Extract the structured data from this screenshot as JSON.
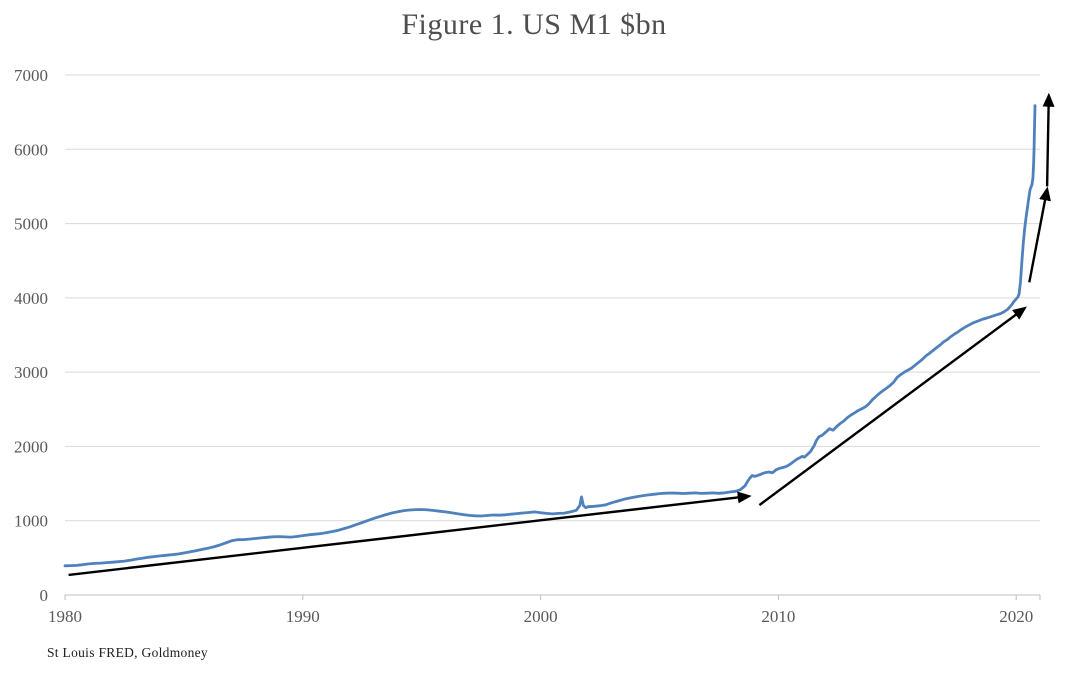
{
  "figure": {
    "title": "Figure 1. US M1 $bn",
    "source": "St Louis FRED, Goldmoney"
  },
  "chart_data": {
    "type": "line",
    "title": "Figure 1. US M1 $bn",
    "xlabel": "",
    "ylabel": "",
    "xlim": [
      1980,
      2021
    ],
    "ylim": [
      0,
      7000
    ],
    "x_ticks": [
      1980,
      1990,
      2000,
      2010,
      2020
    ],
    "y_ticks": [
      0,
      1000,
      2000,
      3000,
      4000,
      5000,
      6000,
      7000
    ],
    "grid": "horizontal",
    "legend": "none",
    "colors": {
      "grid": "#d9d9d9",
      "axis": "#bfbfbf",
      "tick_label": "#595959",
      "title": "#4e4e4e",
      "arrow": "#000000",
      "series": "#4f81bd"
    },
    "series": [
      {
        "name": "US M1 $bn",
        "color": "#4f81bd",
        "points": [
          [
            1980.0,
            393
          ],
          [
            1980.25,
            396
          ],
          [
            1980.5,
            398
          ],
          [
            1980.75,
            408
          ],
          [
            1981.0,
            419
          ],
          [
            1981.25,
            426
          ],
          [
            1981.5,
            430
          ],
          [
            1981.75,
            436
          ],
          [
            1982.0,
            442
          ],
          [
            1982.25,
            448
          ],
          [
            1982.5,
            457
          ],
          [
            1982.75,
            469
          ],
          [
            1983.0,
            483
          ],
          [
            1983.25,
            496
          ],
          [
            1983.5,
            508
          ],
          [
            1983.75,
            517
          ],
          [
            1984.0,
            527
          ],
          [
            1984.25,
            535
          ],
          [
            1984.5,
            542
          ],
          [
            1984.75,
            552
          ],
          [
            1985.0,
            565
          ],
          [
            1985.25,
            580
          ],
          [
            1985.5,
            597
          ],
          [
            1985.75,
            612
          ],
          [
            1986.0,
            628
          ],
          [
            1986.25,
            647
          ],
          [
            1986.5,
            672
          ],
          [
            1986.75,
            700
          ],
          [
            1987.0,
            729
          ],
          [
            1987.25,
            744
          ],
          [
            1987.5,
            746
          ],
          [
            1987.75,
            752
          ],
          [
            1988.0,
            760
          ],
          [
            1988.25,
            769
          ],
          [
            1988.5,
            777
          ],
          [
            1988.75,
            783
          ],
          [
            1989.0,
            786
          ],
          [
            1989.25,
            782
          ],
          [
            1989.5,
            779
          ],
          [
            1989.75,
            787
          ],
          [
            1990.0,
            799
          ],
          [
            1990.25,
            810
          ],
          [
            1990.5,
            818
          ],
          [
            1990.75,
            826
          ],
          [
            1991.0,
            840
          ],
          [
            1991.25,
            855
          ],
          [
            1991.5,
            872
          ],
          [
            1991.75,
            895
          ],
          [
            1992.0,
            920
          ],
          [
            1992.25,
            948
          ],
          [
            1992.5,
            976
          ],
          [
            1993.0,
            1032
          ],
          [
            1993.25,
            1058
          ],
          [
            1993.5,
            1082
          ],
          [
            1993.75,
            1104
          ],
          [
            1994.0,
            1122
          ],
          [
            1994.25,
            1136
          ],
          [
            1994.5,
            1144
          ],
          [
            1994.75,
            1149
          ],
          [
            1995.0,
            1151
          ],
          [
            1995.25,
            1146
          ],
          [
            1995.5,
            1138
          ],
          [
            1995.75,
            1128
          ],
          [
            1996.0,
            1118
          ],
          [
            1996.25,
            1107
          ],
          [
            1996.5,
            1094
          ],
          [
            1996.75,
            1082
          ],
          [
            1997.0,
            1072
          ],
          [
            1997.25,
            1066
          ],
          [
            1997.5,
            1064
          ],
          [
            1997.75,
            1070
          ],
          [
            1998.0,
            1077
          ],
          [
            1998.25,
            1074
          ],
          [
            1998.5,
            1080
          ],
          [
            1998.75,
            1088
          ],
          [
            1999.0,
            1096
          ],
          [
            1999.25,
            1104
          ],
          [
            1999.5,
            1111
          ],
          [
            1999.75,
            1118
          ],
          [
            2000.0,
            1108
          ],
          [
            2000.25,
            1098
          ],
          [
            2000.5,
            1092
          ],
          [
            2000.75,
            1098
          ],
          [
            2001.0,
            1102
          ],
          [
            2001.25,
            1118
          ],
          [
            2001.5,
            1140
          ],
          [
            2001.65,
            1205
          ],
          [
            2001.72,
            1320
          ],
          [
            2001.8,
            1205
          ],
          [
            2001.9,
            1175
          ],
          [
            2002.0,
            1188
          ],
          [
            2002.25,
            1194
          ],
          [
            2002.5,
            1202
          ],
          [
            2002.75,
            1215
          ],
          [
            2003.0,
            1243
          ],
          [
            2003.25,
            1265
          ],
          [
            2003.5,
            1288
          ],
          [
            2003.75,
            1306
          ],
          [
            2004.0,
            1320
          ],
          [
            2004.25,
            1334
          ],
          [
            2004.5,
            1346
          ],
          [
            2004.75,
            1356
          ],
          [
            2005.0,
            1365
          ],
          [
            2005.25,
            1370
          ],
          [
            2005.5,
            1373
          ],
          [
            2005.75,
            1370
          ],
          [
            2006.0,
            1366
          ],
          [
            2006.25,
            1371
          ],
          [
            2006.5,
            1374
          ],
          [
            2006.75,
            1368
          ],
          [
            2007.0,
            1370
          ],
          [
            2007.25,
            1374
          ],
          [
            2007.5,
            1369
          ],
          [
            2007.75,
            1376
          ],
          [
            2008.0,
            1388
          ],
          [
            2008.2,
            1396
          ],
          [
            2008.4,
            1418
          ],
          [
            2008.6,
            1472
          ],
          [
            2008.7,
            1528
          ],
          [
            2008.8,
            1575
          ],
          [
            2008.9,
            1608
          ],
          [
            2009.0,
            1596
          ],
          [
            2009.15,
            1612
          ],
          [
            2009.3,
            1632
          ],
          [
            2009.45,
            1648
          ],
          [
            2009.6,
            1656
          ],
          [
            2009.75,
            1645
          ],
          [
            2009.9,
            1686
          ],
          [
            2010.05,
            1705
          ],
          [
            2010.2,
            1718
          ],
          [
            2010.35,
            1732
          ],
          [
            2010.5,
            1762
          ],
          [
            2010.65,
            1798
          ],
          [
            2010.8,
            1832
          ],
          [
            2010.9,
            1848
          ],
          [
            2011.0,
            1866
          ],
          [
            2011.1,
            1856
          ],
          [
            2011.2,
            1886
          ],
          [
            2011.35,
            1932
          ],
          [
            2011.5,
            2008
          ],
          [
            2011.6,
            2082
          ],
          [
            2011.7,
            2128
          ],
          [
            2011.85,
            2152
          ],
          [
            2012.0,
            2196
          ],
          [
            2012.15,
            2238
          ],
          [
            2012.3,
            2218
          ],
          [
            2012.45,
            2268
          ],
          [
            2012.6,
            2308
          ],
          [
            2012.75,
            2342
          ],
          [
            2012.9,
            2388
          ],
          [
            2013.05,
            2422
          ],
          [
            2013.2,
            2452
          ],
          [
            2013.35,
            2482
          ],
          [
            2013.5,
            2505
          ],
          [
            2013.65,
            2532
          ],
          [
            2013.8,
            2572
          ],
          [
            2013.95,
            2628
          ],
          [
            2014.1,
            2672
          ],
          [
            2014.25,
            2715
          ],
          [
            2014.4,
            2752
          ],
          [
            2014.55,
            2785
          ],
          [
            2014.7,
            2822
          ],
          [
            2014.85,
            2866
          ],
          [
            2015.0,
            2932
          ],
          [
            2015.15,
            2968
          ],
          [
            2015.3,
            3002
          ],
          [
            2015.45,
            3028
          ],
          [
            2015.6,
            3055
          ],
          [
            2015.75,
            3095
          ],
          [
            2015.9,
            3132
          ],
          [
            2016.05,
            3172
          ],
          [
            2016.2,
            3218
          ],
          [
            2016.35,
            3252
          ],
          [
            2016.5,
            3292
          ],
          [
            2016.65,
            3330
          ],
          [
            2016.8,
            3365
          ],
          [
            2016.95,
            3408
          ],
          [
            2017.1,
            3438
          ],
          [
            2017.25,
            3478
          ],
          [
            2017.4,
            3512
          ],
          [
            2017.55,
            3542
          ],
          [
            2017.7,
            3575
          ],
          [
            2017.85,
            3605
          ],
          [
            2018.0,
            3632
          ],
          [
            2018.15,
            3658
          ],
          [
            2018.3,
            3678
          ],
          [
            2018.45,
            3695
          ],
          [
            2018.6,
            3714
          ],
          [
            2018.75,
            3728
          ],
          [
            2018.9,
            3744
          ],
          [
            2019.05,
            3758
          ],
          [
            2019.2,
            3774
          ],
          [
            2019.35,
            3790
          ],
          [
            2019.5,
            3815
          ],
          [
            2019.65,
            3848
          ],
          [
            2019.8,
            3902
          ],
          [
            2019.9,
            3948
          ],
          [
            2020.0,
            3986
          ],
          [
            2020.07,
            4012
          ],
          [
            2020.12,
            4052
          ],
          [
            2020.18,
            4220
          ],
          [
            2020.24,
            4492
          ],
          [
            2020.3,
            4756
          ],
          [
            2020.36,
            4948
          ],
          [
            2020.42,
            5098
          ],
          [
            2020.48,
            5232
          ],
          [
            2020.54,
            5372
          ],
          [
            2020.58,
            5455
          ],
          [
            2020.62,
            5492
          ],
          [
            2020.66,
            5520
          ],
          [
            2020.7,
            5608
          ],
          [
            2020.73,
            5798
          ],
          [
            2020.75,
            6020
          ],
          [
            2020.77,
            6290
          ],
          [
            2020.79,
            6588
          ]
        ]
      }
    ],
    "annotations": [
      {
        "type": "arrow",
        "label": "trend-1980-2008",
        "color": "#000000",
        "from": [
          1980.15,
          270
        ],
        "to": [
          2008.75,
          1330
        ]
      },
      {
        "type": "arrow",
        "label": "trend-2009-2020",
        "color": "#000000",
        "from": [
          2009.2,
          1210
        ],
        "to": [
          2020.35,
          3860
        ]
      },
      {
        "type": "arrow",
        "label": "acceleration-2020",
        "color": "#000000",
        "from": [
          2020.55,
          4210
        ],
        "to": [
          2021.3,
          5460
        ]
      },
      {
        "type": "arrow",
        "label": "vertical-2020",
        "color": "#000000",
        "from": [
          2021.3,
          5500
        ],
        "to": [
          2021.37,
          6720
        ]
      }
    ]
  }
}
